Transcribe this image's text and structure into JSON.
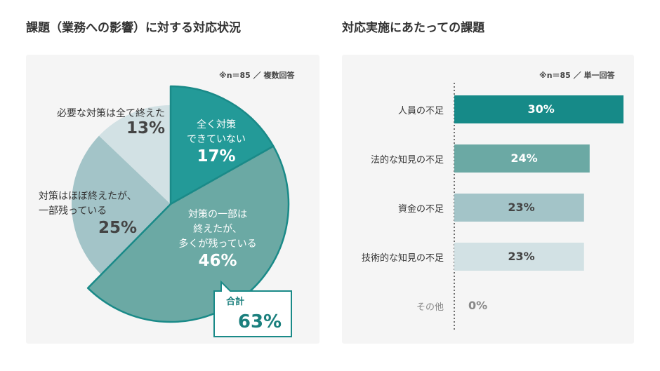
{
  "chart_data": [
    {
      "type": "pie",
      "title": "課題（業務への影響）に対する対応状況",
      "note": "※n＝85 ／ 複数回答",
      "slices": [
        {
          "label": "全く対策できていない",
          "label_lines": [
            "全く対策",
            "できていない"
          ],
          "value": 17,
          "display": "17%",
          "color": "#239a98",
          "highlight": true
        },
        {
          "label": "対策の一部は終えたが、多くが残っている",
          "label_lines": [
            "対策の一部は",
            "終えたが、",
            "多くが残っている"
          ],
          "value": 46,
          "display": "46%",
          "color": "#6ba9a4",
          "highlight": true
        },
        {
          "label": "対策はほぼ終えたが、一部残っている",
          "label_lines": [
            "対策はほぼ終えたが、",
            "一部残っている"
          ],
          "value": 25,
          "display": "25%",
          "color": "#a3c4c8",
          "highlight": false
        },
        {
          "label": "必要な対策は全て終えた",
          "label_lines": [
            "必要な対策は全て終えた"
          ],
          "value": 13,
          "display": "13%",
          "color": "#d2e1e4",
          "highlight": false
        }
      ],
      "callout": {
        "label": "合計",
        "value": "63%"
      }
    },
    {
      "type": "bar",
      "orientation": "horizontal",
      "title": "対応実施にあたっての課題",
      "note": "※n＝85 ／ 単一回答",
      "categories": [
        "人員の不足",
        "法的な知見の不足",
        "資金の不足",
        "技術的な知見の不足",
        "その他"
      ],
      "values": [
        30,
        24,
        23,
        23,
        0
      ],
      "display": [
        "30%",
        "24%",
        "23%",
        "23%",
        "0%"
      ],
      "colors": [
        "#168a88",
        "#6ba9a4",
        "#a3c4c8",
        "#d2e1e4",
        "#d2e1e4"
      ],
      "xlim": [
        0,
        30
      ]
    }
  ]
}
